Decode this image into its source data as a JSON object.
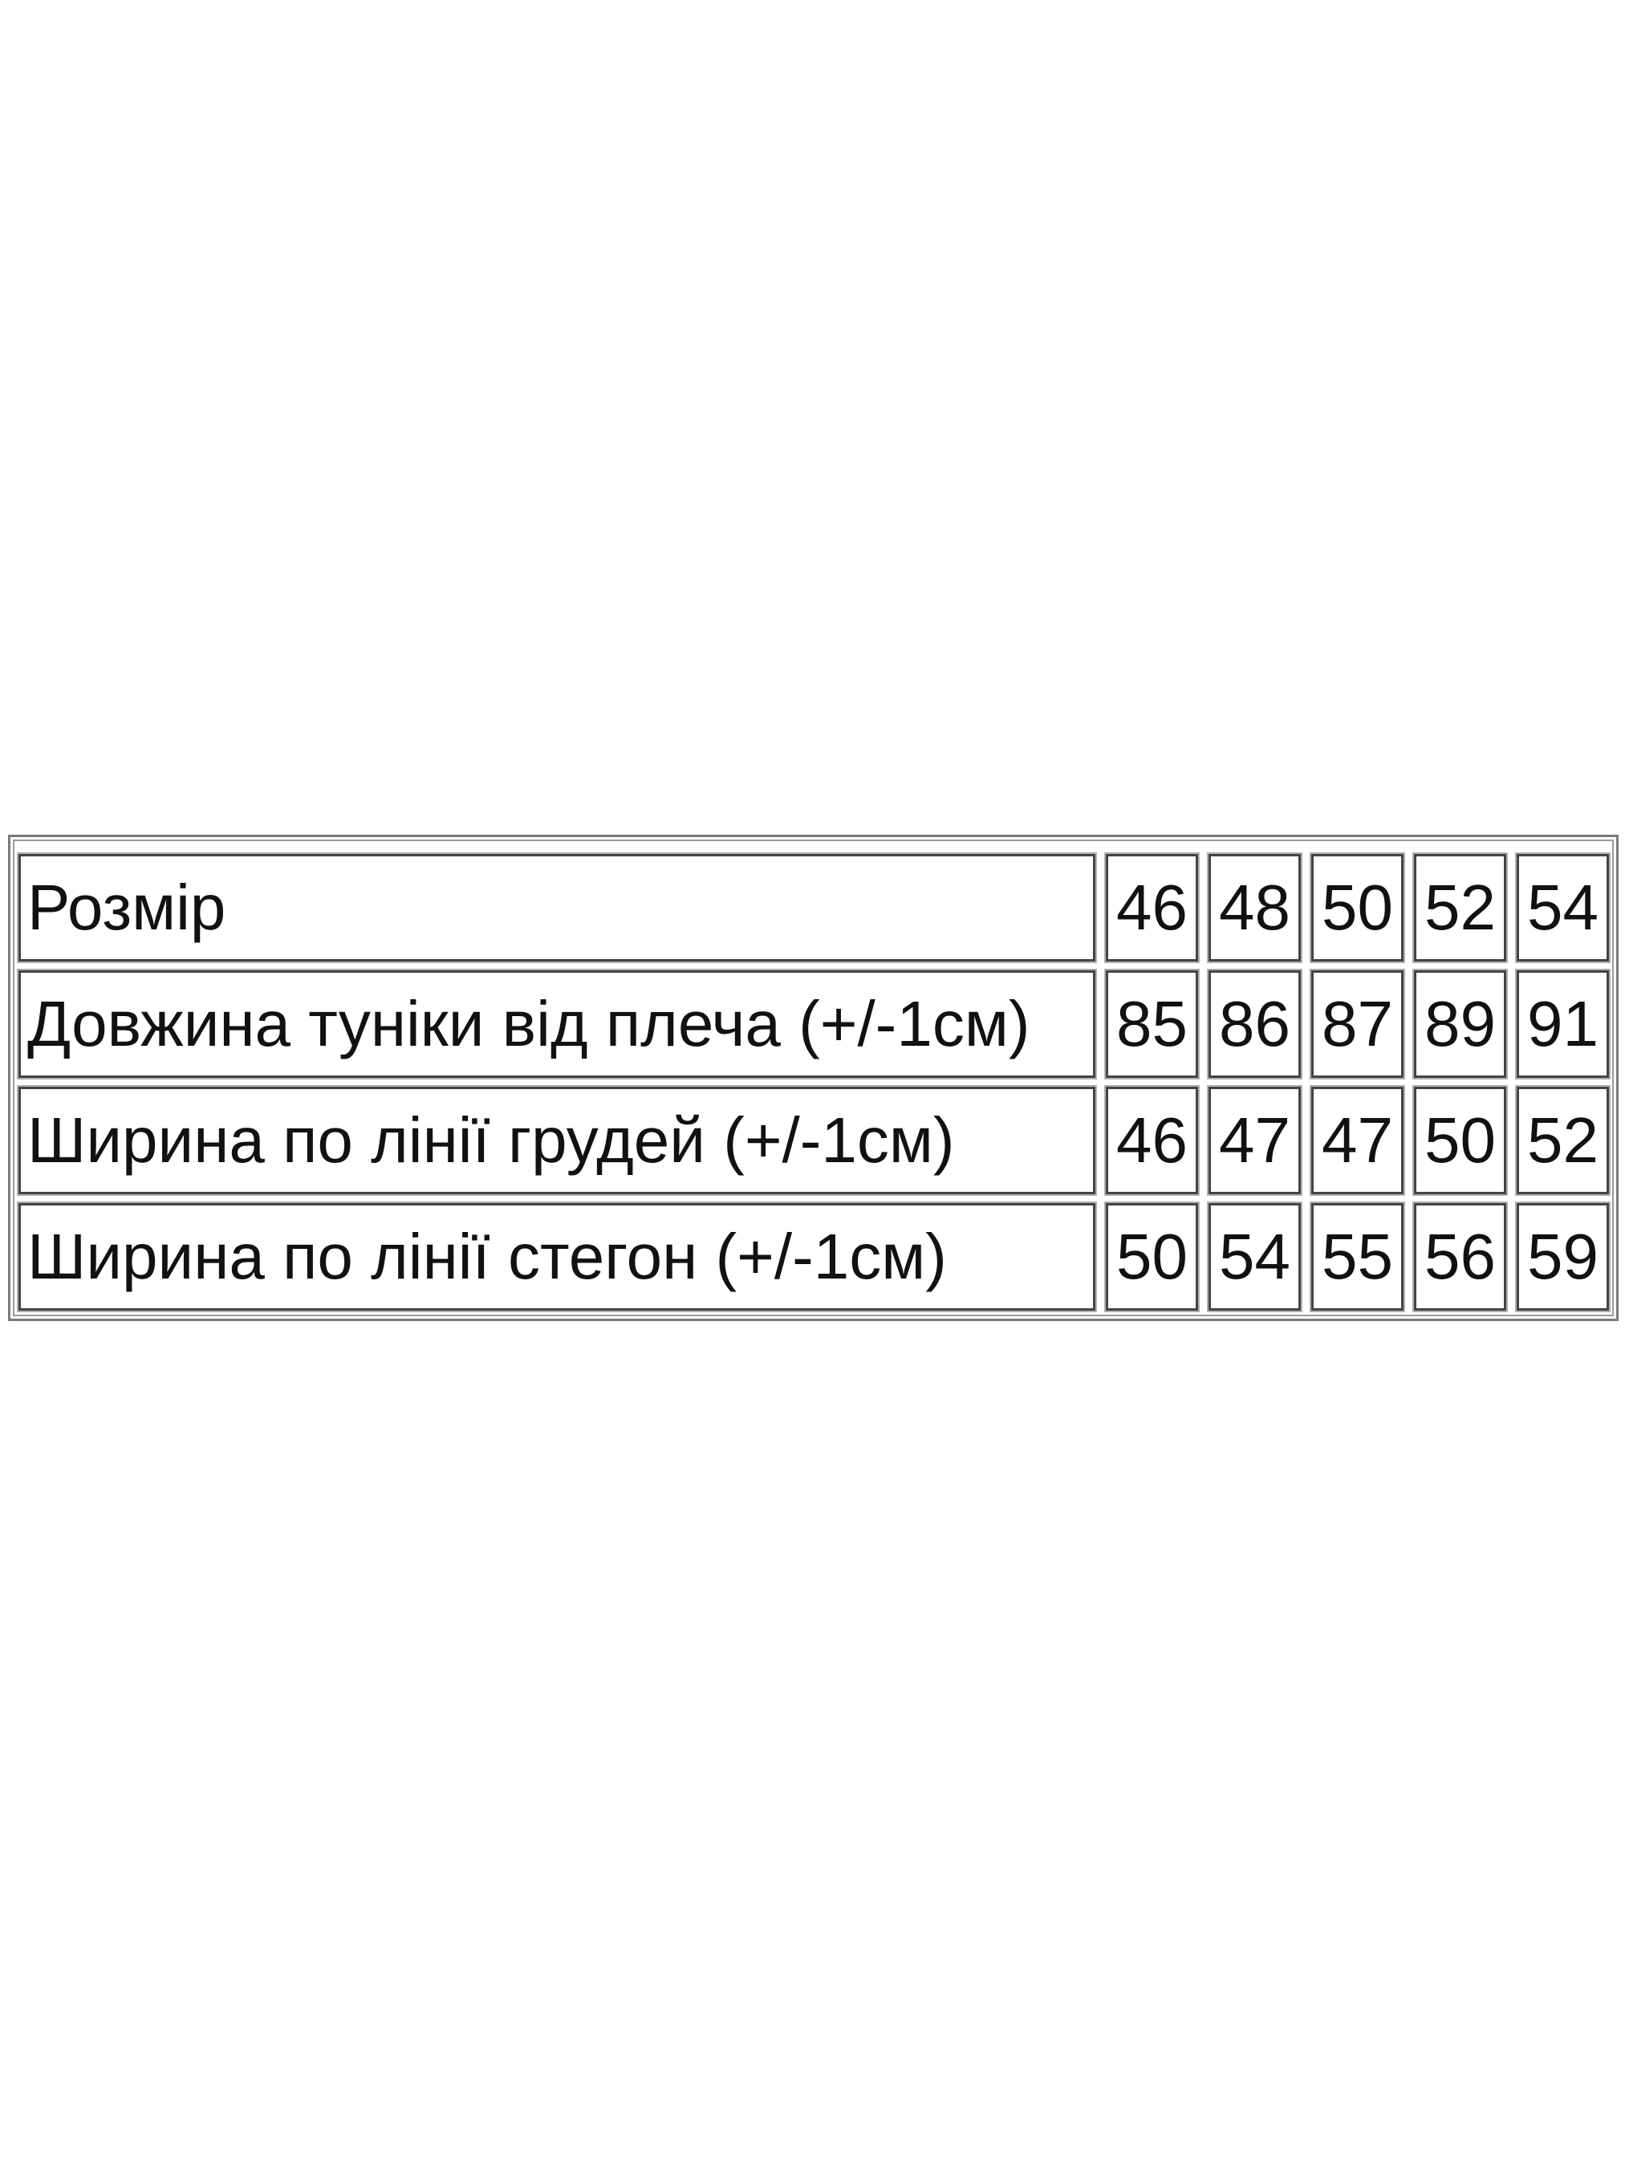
{
  "size_table": {
    "rows": [
      {
        "label": "Розмір",
        "values": [
          "46",
          "48",
          "50",
          "52",
          "54"
        ]
      },
      {
        "label": "Довжина туніки від плеча (+/-1см)",
        "values": [
          "85",
          "86",
          "87",
          "89",
          "91"
        ]
      },
      {
        "label": "Ширина по лінії грудей (+/-1см)",
        "values": [
          "46",
          "47",
          "47",
          "50",
          "52"
        ]
      },
      {
        "label": "Ширина по лінії стегон (+/-1см)",
        "values": [
          "50",
          "54",
          "55",
          "56",
          "59"
        ]
      }
    ]
  }
}
